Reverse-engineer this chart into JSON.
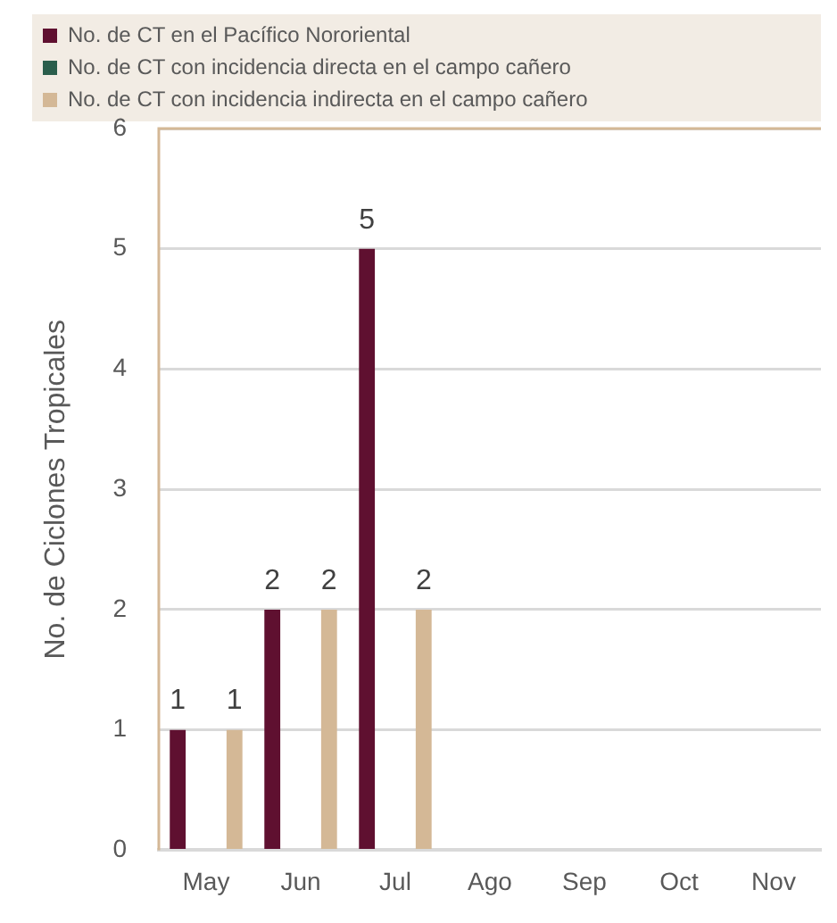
{
  "chart_data": {
    "type": "bar",
    "categories": [
      "May",
      "Jun",
      "Jul",
      "Ago",
      "Sep",
      "Oct",
      "Nov"
    ],
    "ylabel": "No. de Ciclones Tropicales",
    "ylim": [
      0,
      6
    ],
    "yticks": [
      0,
      1,
      2,
      3,
      4,
      5,
      6
    ],
    "grid": "y",
    "legend": "top",
    "data_labels": true,
    "series": [
      {
        "name": "No. de CT en el Pacífico Nororiental",
        "color": "#5f1030",
        "values": [
          1,
          2,
          5,
          null,
          null,
          null,
          null
        ]
      },
      {
        "name": "No. de CT con incidencia directa en el campo cañero",
        "color": "#2a5e4c",
        "values": [
          null,
          null,
          null,
          null,
          null,
          null,
          null
        ]
      },
      {
        "name": "No. de CT con incidencia indirecta en el campo cañero",
        "color": "#d4b896",
        "values": [
          1,
          2,
          2,
          null,
          null,
          null,
          null
        ]
      }
    ]
  }
}
